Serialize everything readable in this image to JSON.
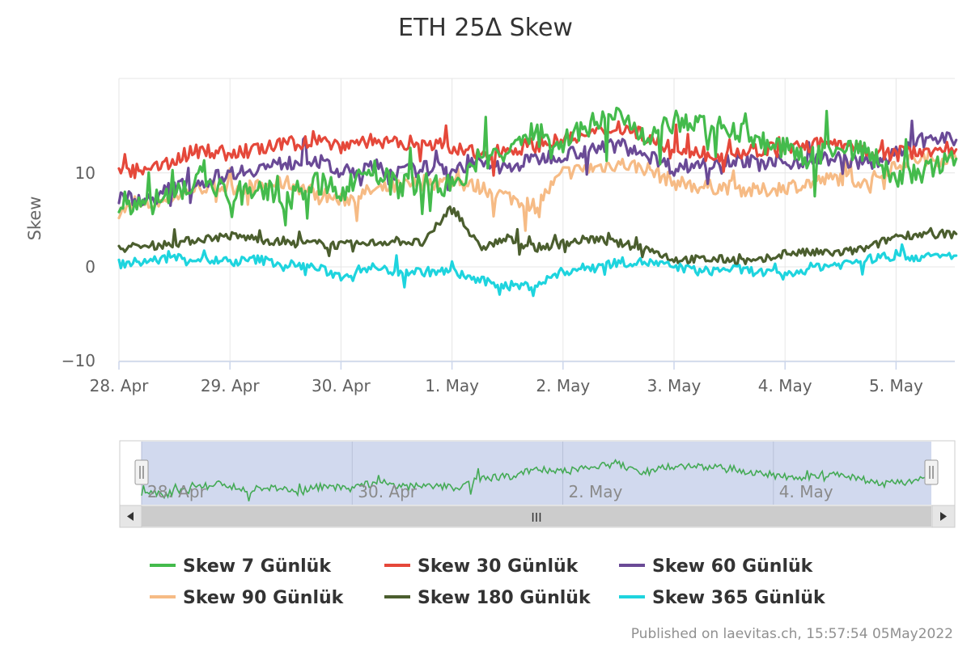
{
  "chart_data": {
    "type": "line",
    "title": "ETH 25Δ Skew",
    "ylabel": "Skew",
    "xlabel": "",
    "ylim": [
      -11,
      20
    ],
    "xlim": [
      "2022-04-28 00:00",
      "2022-05-05 13:00"
    ],
    "y_ticks": [
      10,
      0,
      -10
    ],
    "y_tick_labels": [
      "10",
      "0",
      "−10"
    ],
    "x_ticks": [
      "28. Apr",
      "29. Apr",
      "30. Apr",
      "1. May",
      "2. May",
      "3. May",
      "4. May",
      "5. May"
    ],
    "grid": true,
    "legend_position": "bottom",
    "series": [
      {
        "name": "Skew 7 Günlük",
        "color": "#44bb4c",
        "points": [
          [
            "28. Apr 00:00",
            7.0
          ],
          [
            "28. Apr 06:00",
            6.5
          ],
          [
            "28. Apr 12:00",
            8.0
          ],
          [
            "28. Apr 18:00",
            9.5
          ],
          [
            "29. Apr 00:00",
            7.5
          ],
          [
            "29. Apr 06:00",
            8.5
          ],
          [
            "29. Apr 12:00",
            7.0
          ],
          [
            "29. Apr 18:00",
            9.0
          ],
          [
            "30. Apr 00:00",
            8.0
          ],
          [
            "30. Apr 06:00",
            10.5
          ],
          [
            "30. Apr 12:00",
            8.5
          ],
          [
            "30. Apr 18:00",
            9.0
          ],
          [
            "1. May 00:00",
            8.5
          ],
          [
            "1. May 06:00",
            11.5
          ],
          [
            "1. May 12:00",
            12.0
          ],
          [
            "1. May 18:00",
            14.5
          ],
          [
            "2. May 00:00",
            13.5
          ],
          [
            "2. May 06:00",
            15.0
          ],
          [
            "2. May 12:00",
            16.5
          ],
          [
            "2. May 18:00",
            13.0
          ],
          [
            "3. May 00:00",
            15.5
          ],
          [
            "3. May 06:00",
            15.0
          ],
          [
            "3. May 12:00",
            15.0
          ],
          [
            "3. May 18:00",
            13.5
          ],
          [
            "4. May 00:00",
            12.5
          ],
          [
            "4. May 06:00",
            11.5
          ],
          [
            "4. May 12:00",
            13.0
          ],
          [
            "4. May 18:00",
            12.0
          ],
          [
            "5. May 00:00",
            9.5
          ],
          [
            "5. May 06:00",
            10.0
          ],
          [
            "5. May 13:00",
            11.5
          ]
        ]
      },
      {
        "name": "Skew 30 Günlük",
        "color": "#e5483a",
        "points": [
          [
            "28. Apr 00:00",
            10.5
          ],
          [
            "28. Apr 06:00",
            10.0
          ],
          [
            "28. Apr 12:00",
            11.5
          ],
          [
            "28. Apr 18:00",
            12.5
          ],
          [
            "29. Apr 00:00",
            12.0
          ],
          [
            "29. Apr 06:00",
            12.5
          ],
          [
            "29. Apr 12:00",
            13.0
          ],
          [
            "29. Apr 18:00",
            13.5
          ],
          [
            "30. Apr 00:00",
            13.0
          ],
          [
            "30. Apr 06:00",
            13.5
          ],
          [
            "30. Apr 12:00",
            13.0
          ],
          [
            "30. Apr 18:00",
            13.5
          ],
          [
            "1. May 00:00",
            12.5
          ],
          [
            "1. May 06:00",
            12.0
          ],
          [
            "1. May 12:00",
            12.5
          ],
          [
            "1. May 18:00",
            13.0
          ],
          [
            "2. May 00:00",
            13.5
          ],
          [
            "2. May 06:00",
            14.0
          ],
          [
            "2. May 12:00",
            15.0
          ],
          [
            "2. May 18:00",
            14.0
          ],
          [
            "3. May 00:00",
            12.0
          ],
          [
            "3. May 06:00",
            12.0
          ],
          [
            "3. May 12:00",
            12.0
          ],
          [
            "3. May 18:00",
            12.5
          ],
          [
            "4. May 00:00",
            12.5
          ],
          [
            "4. May 06:00",
            13.0
          ],
          [
            "4. May 12:00",
            13.0
          ],
          [
            "4. May 18:00",
            12.0
          ],
          [
            "5. May 00:00",
            12.0
          ],
          [
            "5. May 06:00",
            12.5
          ],
          [
            "5. May 13:00",
            12.5
          ]
        ]
      },
      {
        "name": "Skew 60 Günlük",
        "color": "#6a4a96",
        "points": [
          [
            "28. Apr 00:00",
            7.5
          ],
          [
            "28. Apr 06:00",
            7.0
          ],
          [
            "28. Apr 12:00",
            8.5
          ],
          [
            "28. Apr 18:00",
            9.0
          ],
          [
            "29. Apr 00:00",
            10.0
          ],
          [
            "29. Apr 06:00",
            10.5
          ],
          [
            "29. Apr 12:00",
            11.0
          ],
          [
            "29. Apr 18:00",
            11.5
          ],
          [
            "30. Apr 00:00",
            10.0
          ],
          [
            "30. Apr 06:00",
            10.5
          ],
          [
            "30. Apr 12:00",
            10.0
          ],
          [
            "30. Apr 18:00",
            10.5
          ],
          [
            "1. May 00:00",
            10.5
          ],
          [
            "1. May 06:00",
            11.0
          ],
          [
            "1. May 12:00",
            10.5
          ],
          [
            "1. May 18:00",
            11.5
          ],
          [
            "2. May 00:00",
            12.0
          ],
          [
            "2. May 06:00",
            12.5
          ],
          [
            "2. May 12:00",
            13.0
          ],
          [
            "2. May 18:00",
            12.0
          ],
          [
            "3. May 00:00",
            10.5
          ],
          [
            "3. May 06:00",
            11.0
          ],
          [
            "3. May 12:00",
            11.5
          ],
          [
            "3. May 18:00",
            11.0
          ],
          [
            "4. May 00:00",
            11.0
          ],
          [
            "4. May 06:00",
            11.5
          ],
          [
            "4. May 12:00",
            11.5
          ],
          [
            "4. May 18:00",
            11.0
          ],
          [
            "5. May 00:00",
            12.0
          ],
          [
            "5. May 06:00",
            13.5
          ],
          [
            "5. May 13:00",
            13.5
          ]
        ]
      },
      {
        "name": "Skew 90 Günlük",
        "color": "#f6bb85",
        "points": [
          [
            "28. Apr 00:00",
            6.0
          ],
          [
            "28. Apr 06:00",
            6.5
          ],
          [
            "28. Apr 12:00",
            7.5
          ],
          [
            "28. Apr 18:00",
            8.5
          ],
          [
            "29. Apr 00:00",
            8.5
          ],
          [
            "29. Apr 06:00",
            8.5
          ],
          [
            "29. Apr 12:00",
            9.0
          ],
          [
            "29. Apr 18:00",
            8.0
          ],
          [
            "30. Apr 00:00",
            7.0
          ],
          [
            "30. Apr 06:00",
            8.0
          ],
          [
            "30. Apr 12:00",
            8.5
          ],
          [
            "30. Apr 18:00",
            9.0
          ],
          [
            "1. May 00:00",
            9.0
          ],
          [
            "1. May 06:00",
            8.5
          ],
          [
            "1. May 12:00",
            7.5
          ],
          [
            "1. May 18:00",
            6.5
          ],
          [
            "2. May 00:00",
            10.0
          ],
          [
            "2. May 06:00",
            10.5
          ],
          [
            "2. May 12:00",
            11.0
          ],
          [
            "2. May 18:00",
            10.5
          ],
          [
            "3. May 00:00",
            9.0
          ],
          [
            "3. May 06:00",
            8.5
          ],
          [
            "3. May 12:00",
            8.5
          ],
          [
            "3. May 18:00",
            8.0
          ],
          [
            "4. May 00:00",
            8.5
          ],
          [
            "4. May 06:00",
            9.0
          ],
          [
            "4. May 12:00",
            9.5
          ],
          [
            "4. May 18:00",
            9.0
          ],
          [
            "5. May 00:00",
            11.0
          ],
          [
            "5. May 06:00",
            11.5
          ],
          [
            "5. May 13:00",
            11.5
          ]
        ]
      },
      {
        "name": "Skew 180 Günlük",
        "color": "#4b5e2e",
        "points": [
          [
            "28. Apr 00:00",
            2.0
          ],
          [
            "28. Apr 06:00",
            2.2
          ],
          [
            "28. Apr 12:00",
            2.5
          ],
          [
            "28. Apr 18:00",
            3.0
          ],
          [
            "29. Apr 00:00",
            3.3
          ],
          [
            "29. Apr 06:00",
            3.0
          ],
          [
            "29. Apr 12:00",
            2.5
          ],
          [
            "29. Apr 18:00",
            2.5
          ],
          [
            "30. Apr 00:00",
            2.3
          ],
          [
            "30. Apr 06:00",
            2.5
          ],
          [
            "30. Apr 12:00",
            2.8
          ],
          [
            "30. Apr 18:00",
            2.5
          ],
          [
            "1. May 00:00",
            6.5
          ],
          [
            "1. May 06:00",
            2.0
          ],
          [
            "1. May 12:00",
            3.0
          ],
          [
            "1. May 18:00",
            2.0
          ],
          [
            "2. May 00:00",
            2.5
          ],
          [
            "2. May 06:00",
            3.0
          ],
          [
            "2. May 12:00",
            2.5
          ],
          [
            "2. May 18:00",
            2.0
          ],
          [
            "3. May 00:00",
            0.8
          ],
          [
            "3. May 06:00",
            0.8
          ],
          [
            "3. May 12:00",
            0.8
          ],
          [
            "3. May 18:00",
            0.5
          ],
          [
            "4. May 00:00",
            1.5
          ],
          [
            "4. May 06:00",
            1.5
          ],
          [
            "4. May 12:00",
            1.5
          ],
          [
            "4. May 18:00",
            2.0
          ],
          [
            "5. May 00:00",
            3.3
          ],
          [
            "5. May 06:00",
            3.5
          ],
          [
            "5. May 13:00",
            3.5
          ]
        ]
      },
      {
        "name": "Skew 365 Günlük",
        "color": "#1ed4de",
        "points": [
          [
            "28. Apr 00:00",
            0.3
          ],
          [
            "28. Apr 06:00",
            0.6
          ],
          [
            "28. Apr 12:00",
            1.0
          ],
          [
            "28. Apr 18:00",
            0.8
          ],
          [
            "29. Apr 00:00",
            0.5
          ],
          [
            "29. Apr 06:00",
            0.8
          ],
          [
            "29. Apr 12:00",
            0.3
          ],
          [
            "29. Apr 18:00",
            0.0
          ],
          [
            "30. Apr 00:00",
            -1.0
          ],
          [
            "30. Apr 06:00",
            0.0
          ],
          [
            "30. Apr 12:00",
            -0.5
          ],
          [
            "30. Apr 18:00",
            -0.5
          ],
          [
            "1. May 00:00",
            -0.5
          ],
          [
            "1. May 06:00",
            -1.5
          ],
          [
            "1. May 12:00",
            -2.0
          ],
          [
            "1. May 18:00",
            -2.0
          ],
          [
            "2. May 00:00",
            -0.5
          ],
          [
            "2. May 06:00",
            0.0
          ],
          [
            "2. May 12:00",
            0.5
          ],
          [
            "2. May 18:00",
            0.5
          ],
          [
            "3. May 00:00",
            0.0
          ],
          [
            "3. May 06:00",
            -0.5
          ],
          [
            "3. May 12:00",
            -0.2
          ],
          [
            "3. May 18:00",
            -0.5
          ],
          [
            "4. May 00:00",
            -1.0
          ],
          [
            "4. May 06:00",
            0.0
          ],
          [
            "4. May 12:00",
            0.3
          ],
          [
            "4. May 18:00",
            0.8
          ],
          [
            "5. May 00:00",
            1.2
          ],
          [
            "5. May 06:00",
            1.0
          ],
          [
            "5. May 13:00",
            1.2
          ]
        ]
      }
    ],
    "navigator": {
      "x_labels": [
        "28. Apr",
        "30. Apr",
        "2. May",
        "4. May"
      ],
      "scrollbar_grip": "III"
    },
    "credit": "Published on laevitas.ch, 15:57:54 05May2022"
  }
}
